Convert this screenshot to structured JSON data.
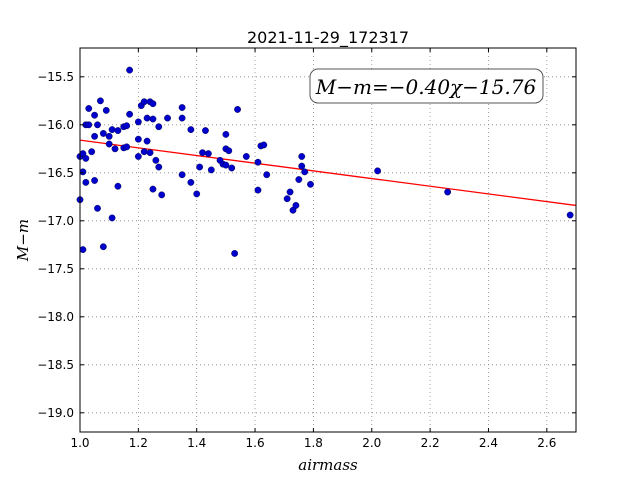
{
  "chart_data": {
    "type": "scatter",
    "title": "2021-11-29_172317",
    "xlabel": "airmass",
    "ylabel": "M−m",
    "xlim": [
      1.0,
      2.7
    ],
    "ylim": [
      -15.2,
      -19.2
    ],
    "y_inverted": true,
    "grid": true,
    "x_ticks": [
      "1.0",
      "1.2",
      "1.4",
      "1.6",
      "1.8",
      "2.0",
      "2.2",
      "2.4",
      "2.6"
    ],
    "y_ticks": [
      "−15.5",
      "−16.0",
      "−16.5",
      "−17.0",
      "−17.5",
      "−18.0",
      "−18.5",
      "−19.0"
    ],
    "annotation": "M−m=−0.40χ−15.76",
    "colors": {
      "points": "#0000cc",
      "fit_line": "#ff0000",
      "grid": "#888888"
    },
    "fit": {
      "slope": -0.4,
      "intercept": -15.76
    },
    "points": [
      {
        "x": 1.0,
        "y": -16.33
      },
      {
        "x": 1.0,
        "y": -16.78
      },
      {
        "x": 1.01,
        "y": -16.3
      },
      {
        "x": 1.01,
        "y": -16.49
      },
      {
        "x": 1.01,
        "y": -17.3
      },
      {
        "x": 1.02,
        "y": -16.0
      },
      {
        "x": 1.02,
        "y": -16.35
      },
      {
        "x": 1.02,
        "y": -16.6
      },
      {
        "x": 1.03,
        "y": -15.83
      },
      {
        "x": 1.03,
        "y": -16.0
      },
      {
        "x": 1.04,
        "y": -16.28
      },
      {
        "x": 1.05,
        "y": -15.9
      },
      {
        "x": 1.05,
        "y": -16.12
      },
      {
        "x": 1.05,
        "y": -16.58
      },
      {
        "x": 1.06,
        "y": -16.0
      },
      {
        "x": 1.06,
        "y": -16.87
      },
      {
        "x": 1.07,
        "y": -15.75
      },
      {
        "x": 1.08,
        "y": -16.09
      },
      {
        "x": 1.08,
        "y": -17.27
      },
      {
        "x": 1.09,
        "y": -15.85
      },
      {
        "x": 1.1,
        "y": -16.12
      },
      {
        "x": 1.1,
        "y": -16.2
      },
      {
        "x": 1.11,
        "y": -16.05
      },
      {
        "x": 1.11,
        "y": -16.97
      },
      {
        "x": 1.12,
        "y": -16.25
      },
      {
        "x": 1.13,
        "y": -16.06
      },
      {
        "x": 1.13,
        "y": -16.64
      },
      {
        "x": 1.15,
        "y": -16.02
      },
      {
        "x": 1.15,
        "y": -16.24
      },
      {
        "x": 1.16,
        "y": -16.01
      },
      {
        "x": 1.16,
        "y": -16.23
      },
      {
        "x": 1.17,
        "y": -15.89
      },
      {
        "x": 1.17,
        "y": -15.43
      },
      {
        "x": 1.2,
        "y": -15.97
      },
      {
        "x": 1.2,
        "y": -16.15
      },
      {
        "x": 1.2,
        "y": -16.33
      },
      {
        "x": 1.21,
        "y": -15.8
      },
      {
        "x": 1.22,
        "y": -15.76
      },
      {
        "x": 1.22,
        "y": -16.28
      },
      {
        "x": 1.23,
        "y": -15.93
      },
      {
        "x": 1.23,
        "y": -16.17
      },
      {
        "x": 1.24,
        "y": -16.29
      },
      {
        "x": 1.24,
        "y": -15.76
      },
      {
        "x": 1.25,
        "y": -15.78
      },
      {
        "x": 1.25,
        "y": -15.94
      },
      {
        "x": 1.25,
        "y": -16.67
      },
      {
        "x": 1.26,
        "y": -16.37
      },
      {
        "x": 1.27,
        "y": -16.02
      },
      {
        "x": 1.27,
        "y": -16.44
      },
      {
        "x": 1.28,
        "y": -16.73
      },
      {
        "x": 1.3,
        "y": -15.93
      },
      {
        "x": 1.35,
        "y": -15.82
      },
      {
        "x": 1.35,
        "y": -15.93
      },
      {
        "x": 1.35,
        "y": -16.52
      },
      {
        "x": 1.38,
        "y": -16.05
      },
      {
        "x": 1.38,
        "y": -16.6
      },
      {
        "x": 1.4,
        "y": -16.72
      },
      {
        "x": 1.41,
        "y": -16.44
      },
      {
        "x": 1.42,
        "y": -16.29
      },
      {
        "x": 1.43,
        "y": -16.06
      },
      {
        "x": 1.44,
        "y": -16.3
      },
      {
        "x": 1.45,
        "y": -16.47
      },
      {
        "x": 1.48,
        "y": -16.37
      },
      {
        "x": 1.49,
        "y": -16.41
      },
      {
        "x": 1.5,
        "y": -16.1
      },
      {
        "x": 1.5,
        "y": -16.25
      },
      {
        "x": 1.5,
        "y": -16.42
      },
      {
        "x": 1.51,
        "y": -16.27
      },
      {
        "x": 1.52,
        "y": -16.45
      },
      {
        "x": 1.53,
        "y": -17.34
      },
      {
        "x": 1.54,
        "y": -15.84
      },
      {
        "x": 1.57,
        "y": -16.33
      },
      {
        "x": 1.61,
        "y": -16.39
      },
      {
        "x": 1.61,
        "y": -16.68
      },
      {
        "x": 1.62,
        "y": -16.22
      },
      {
        "x": 1.63,
        "y": -16.21
      },
      {
        "x": 1.64,
        "y": -16.52
      },
      {
        "x": 1.71,
        "y": -16.77
      },
      {
        "x": 1.72,
        "y": -16.7
      },
      {
        "x": 1.73,
        "y": -16.89
      },
      {
        "x": 1.74,
        "y": -16.84
      },
      {
        "x": 1.75,
        "y": -16.57
      },
      {
        "x": 1.76,
        "y": -16.43
      },
      {
        "x": 1.76,
        "y": -16.33
      },
      {
        "x": 1.77,
        "y": -16.49
      },
      {
        "x": 1.79,
        "y": -16.62
      },
      {
        "x": 2.02,
        "y": -16.48
      },
      {
        "x": 2.26,
        "y": -16.7
      },
      {
        "x": 2.68,
        "y": -16.94
      }
    ]
  }
}
